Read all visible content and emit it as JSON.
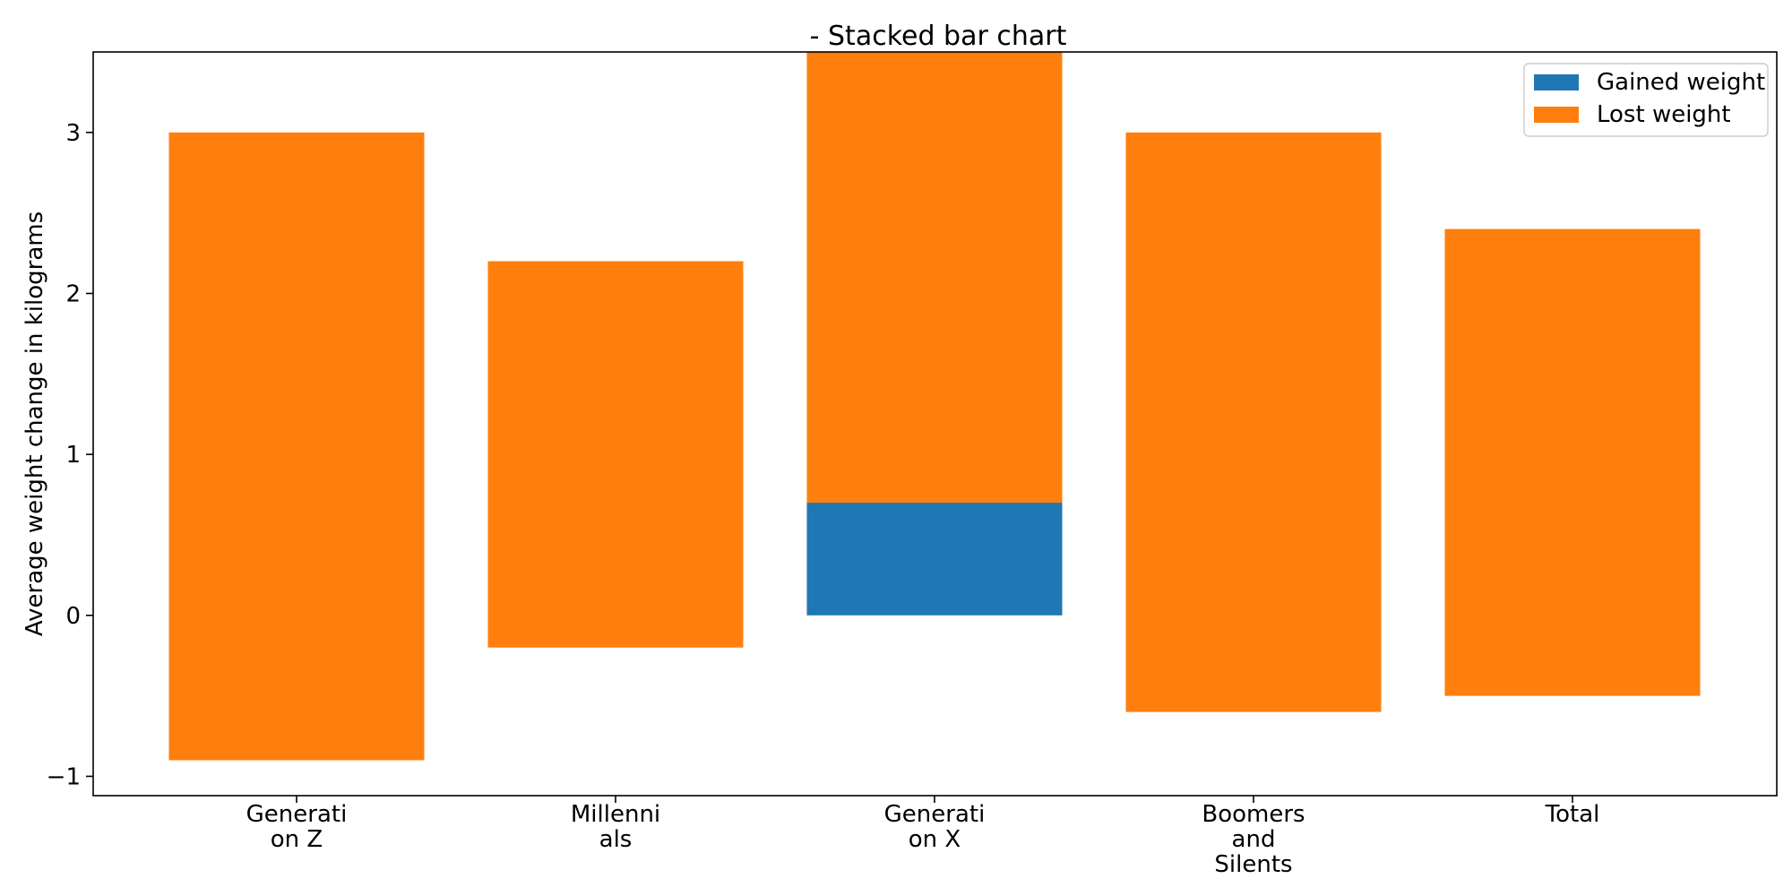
{
  "chart_data": {
    "type": "bar",
    "stacked": true,
    "title": "- Stacked bar chart",
    "xlabel": "",
    "ylabel": "Average weight change in kilograms",
    "categories": [
      [
        "Generati",
        "on Z"
      ],
      [
        "Millenni",
        "als"
      ],
      [
        "Generati",
        "on X"
      ],
      [
        "Boomers",
        "and",
        "Silents"
      ],
      [
        "Total"
      ]
    ],
    "series": [
      {
        "name": "Gained weight",
        "color": "#1f77b4",
        "segments": [
          [
            0,
            0
          ],
          [
            0,
            0
          ],
          [
            0,
            0.7
          ],
          [
            0,
            0
          ],
          [
            0,
            0
          ]
        ]
      },
      {
        "name": "Lost weight",
        "color": "#ff7f0e",
        "segments": [
          [
            -0.9,
            3.0
          ],
          [
            -0.2,
            2.2
          ],
          [
            0.7,
            3.5
          ],
          [
            -0.6,
            3.0
          ],
          [
            -0.5,
            2.4
          ]
        ]
      }
    ],
    "ylim": [
      -1.12,
      3.5
    ],
    "yticks": [
      -1,
      0,
      1,
      2,
      3
    ],
    "ytick_labels": [
      "−1",
      "0",
      "1",
      "2",
      "3"
    ],
    "grid": false,
    "legend": "top-right"
  }
}
